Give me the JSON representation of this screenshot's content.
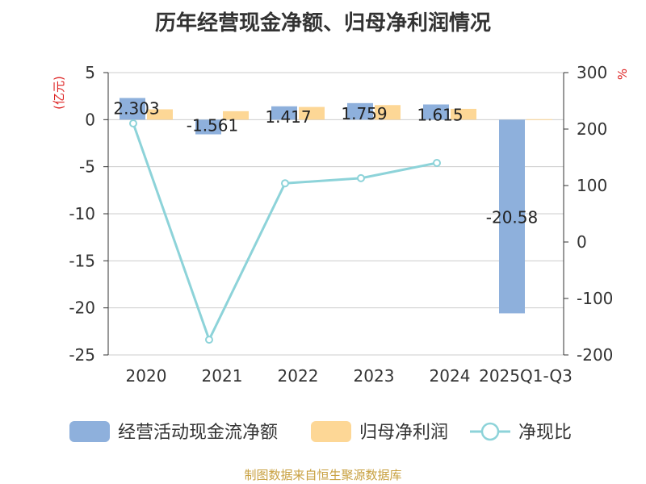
{
  "chart_data": {
    "type": "bar",
    "title": "历年经营现金净额、归母净利润情况",
    "source": "制图数据来自恒生聚源数据库",
    "categories": [
      "2020",
      "2021",
      "2022",
      "2023",
      "2024",
      "2025Q1-Q3"
    ],
    "y_left": {
      "unit_label": "(亿元)",
      "min": -25,
      "max": 5,
      "ticks": [
        5,
        0,
        -5,
        -10,
        -15,
        -20,
        -25
      ]
    },
    "y_right": {
      "unit_label": "%",
      "min": -200,
      "max": 300,
      "ticks": [
        300,
        200,
        100,
        0,
        -100,
        -200
      ]
    },
    "grid": true,
    "legend_position": "bottom",
    "series": [
      {
        "name": "经营活动现金流净额",
        "kind": "bar",
        "axis": "left",
        "color": "#8eb0dc",
        "values": [
          2.303,
          -1.561,
          1.417,
          1.759,
          1.615,
          -20.58
        ],
        "labels": [
          "2.303",
          "-1.561",
          "1.417",
          "1.759",
          "1.615",
          "-20.58"
        ]
      },
      {
        "name": "归母净利润",
        "kind": "bar",
        "axis": "left",
        "color": "#fdd796",
        "values": [
          1.1,
          0.9,
          1.35,
          1.55,
          1.15,
          0.05
        ]
      },
      {
        "name": "净现比",
        "kind": "line",
        "axis": "right",
        "color": "#8dd3d9",
        "values": [
          210,
          -173,
          104,
          113,
          140,
          null
        ]
      }
    ]
  }
}
